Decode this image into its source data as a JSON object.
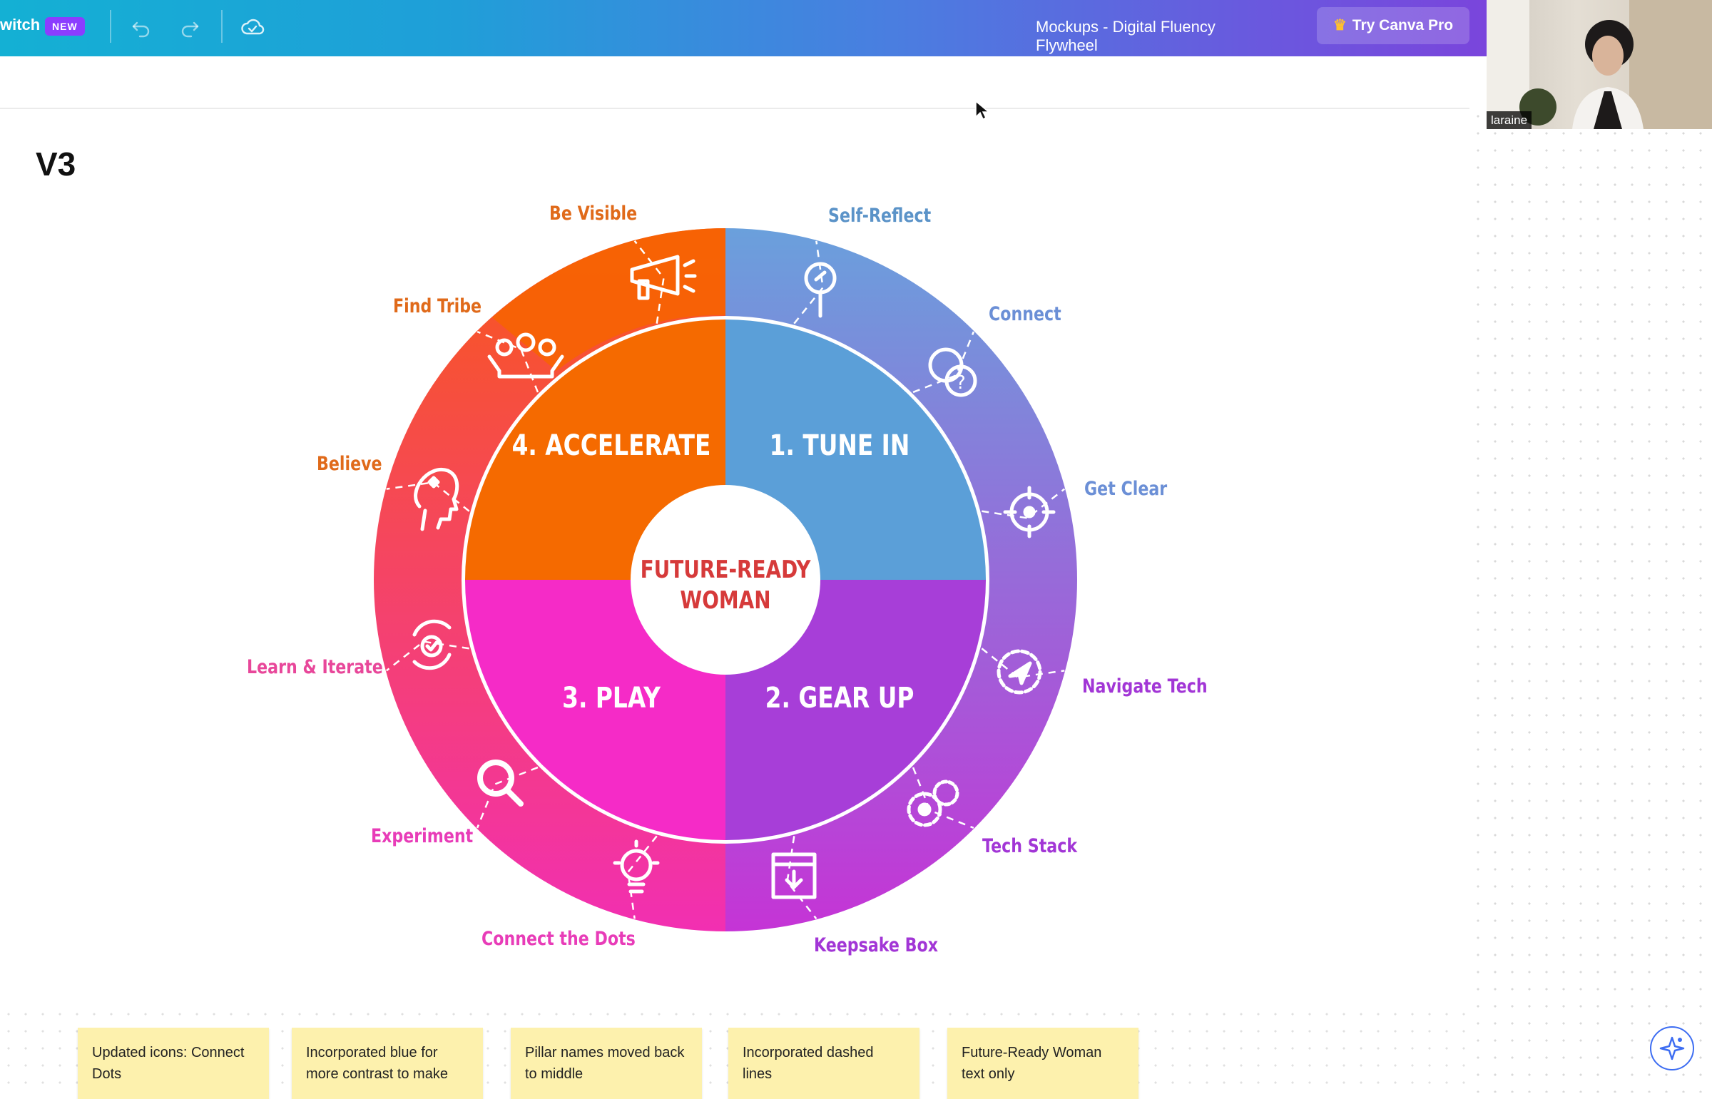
{
  "toolbar": {
    "switch_label": "witch",
    "new_badge": "NEW",
    "undo_icon": "undo-icon",
    "redo_icon": "redo-icon",
    "save_status_icon": "cloud-check-icon",
    "doc_title": "Mockups - Digital Fluency Flywheel",
    "try_pro_label": "Try Canva Pro",
    "try_pro_icon": "crown-icon",
    "brand_gradient": [
      "#14b0d4",
      "#7a45dc"
    ]
  },
  "canvas": {
    "version_label": "V3"
  },
  "flywheel": {
    "center": [
      "FUTURE-READY",
      "WOMAN"
    ],
    "quadrants": [
      {
        "label": "1. TUNE IN",
        "color": "#5b9fd8"
      },
      {
        "label": "2. GEAR UP",
        "color": "#a73ed8"
      },
      {
        "label": "3. PLAY",
        "color": "#f52bc7"
      },
      {
        "label": "4. ACCELERATE",
        "color": "#f56a00"
      }
    ],
    "segments": [
      {
        "label": "Self-Reflect",
        "icon": "mirror-icon",
        "color": "#5b93c8"
      },
      {
        "label": "Connect",
        "icon": "chat-bubbles-icon",
        "color": "#6b8fd6"
      },
      {
        "label": "Get Clear",
        "icon": "target-icon",
        "color": "#6b8fd6"
      },
      {
        "label": "Navigate Tech",
        "icon": "compass-gear-icon",
        "color": "#a236d6"
      },
      {
        "label": "Tech Stack",
        "icon": "gears-icon",
        "color": "#a236d6"
      },
      {
        "label": "Keepsake Box",
        "icon": "download-box-icon",
        "color": "#a236d6"
      },
      {
        "label": "Connect the Dots",
        "icon": "lightbulb-icon",
        "color": "#e83cb8"
      },
      {
        "label": "Experiment",
        "icon": "magnifier-icon",
        "color": "#e83cb8"
      },
      {
        "label": "Learn & Iterate",
        "icon": "cycle-check-icon",
        "color": "#e8479a"
      },
      {
        "label": "Believe",
        "icon": "head-heart-icon",
        "color": "#e06a1a"
      },
      {
        "label": "Find Tribe",
        "icon": "group-icon",
        "color": "#e06a1a"
      },
      {
        "label": "Be Visible",
        "icon": "megaphone-icon",
        "color": "#e06a1a"
      }
    ]
  },
  "notes": [
    "Updated icons: Connect Dots",
    "Incorporated blue for more contrast to make",
    "Pillar names moved back to middle",
    "Incorporated dashed lines",
    "Future-Ready Woman text only"
  ],
  "video": {
    "participant_name": "laraine"
  },
  "magic_button_icon": "sparkle-icon"
}
